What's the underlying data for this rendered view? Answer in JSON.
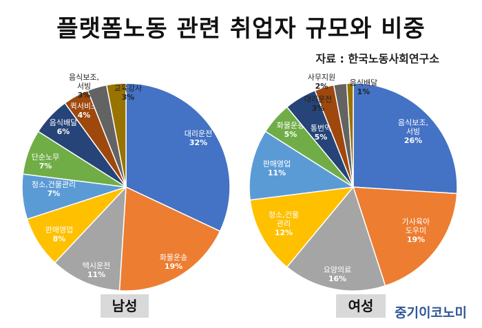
{
  "title": "플랫폼노동 관련 취업자 규모와 비중",
  "source": "자료 : 한국노동사회연구소",
  "brand": "중기이코노미",
  "chart_data": [
    {
      "type": "pie",
      "name": "남성",
      "slices": [
        {
          "label": "대리운전",
          "value": 32,
          "color": "#4472c4"
        },
        {
          "label": "화물운송",
          "value": 19,
          "color": "#ed7d31"
        },
        {
          "label": "택시운전",
          "value": 11,
          "color": "#a5a5a5"
        },
        {
          "label": "판매영업",
          "value": 8,
          "color": "#ffc000"
        },
        {
          "label": "청소,건물관리",
          "value": 7,
          "color": "#5b9bd5"
        },
        {
          "label": "단순노무",
          "value": 7,
          "color": "#70ad47"
        },
        {
          "label": "음식배달",
          "value": 6,
          "color": "#264478"
        },
        {
          "label": "퀵서비스",
          "value": 4,
          "color": "#9e480e"
        },
        {
          "label": "음식보조,서빙",
          "value": 3,
          "color": "#636363"
        },
        {
          "label": "교육강사",
          "value": 3,
          "color": "#997300"
        }
      ]
    },
    {
      "type": "pie",
      "name": "여성",
      "slices": [
        {
          "label": "음식보조,서빙",
          "value": 26,
          "color": "#4472c4"
        },
        {
          "label": "가사육아도우미",
          "value": 19,
          "color": "#ed7d31"
        },
        {
          "label": "요양의료",
          "value": 16,
          "color": "#a5a5a5"
        },
        {
          "label": "청소,건물관리",
          "value": 12,
          "color": "#ffc000"
        },
        {
          "label": "판매영업",
          "value": 11,
          "color": "#5b9bd5"
        },
        {
          "label": "화물운송",
          "value": 5,
          "color": "#70ad47"
        },
        {
          "label": "통번역",
          "value": 5,
          "color": "#264478"
        },
        {
          "label": "대리운전",
          "value": 3,
          "color": "#9e480e"
        },
        {
          "label": "사무지원",
          "value": 2,
          "color": "#636363"
        },
        {
          "label": "음식배달",
          "value": 1,
          "color": "#997300"
        }
      ]
    }
  ]
}
